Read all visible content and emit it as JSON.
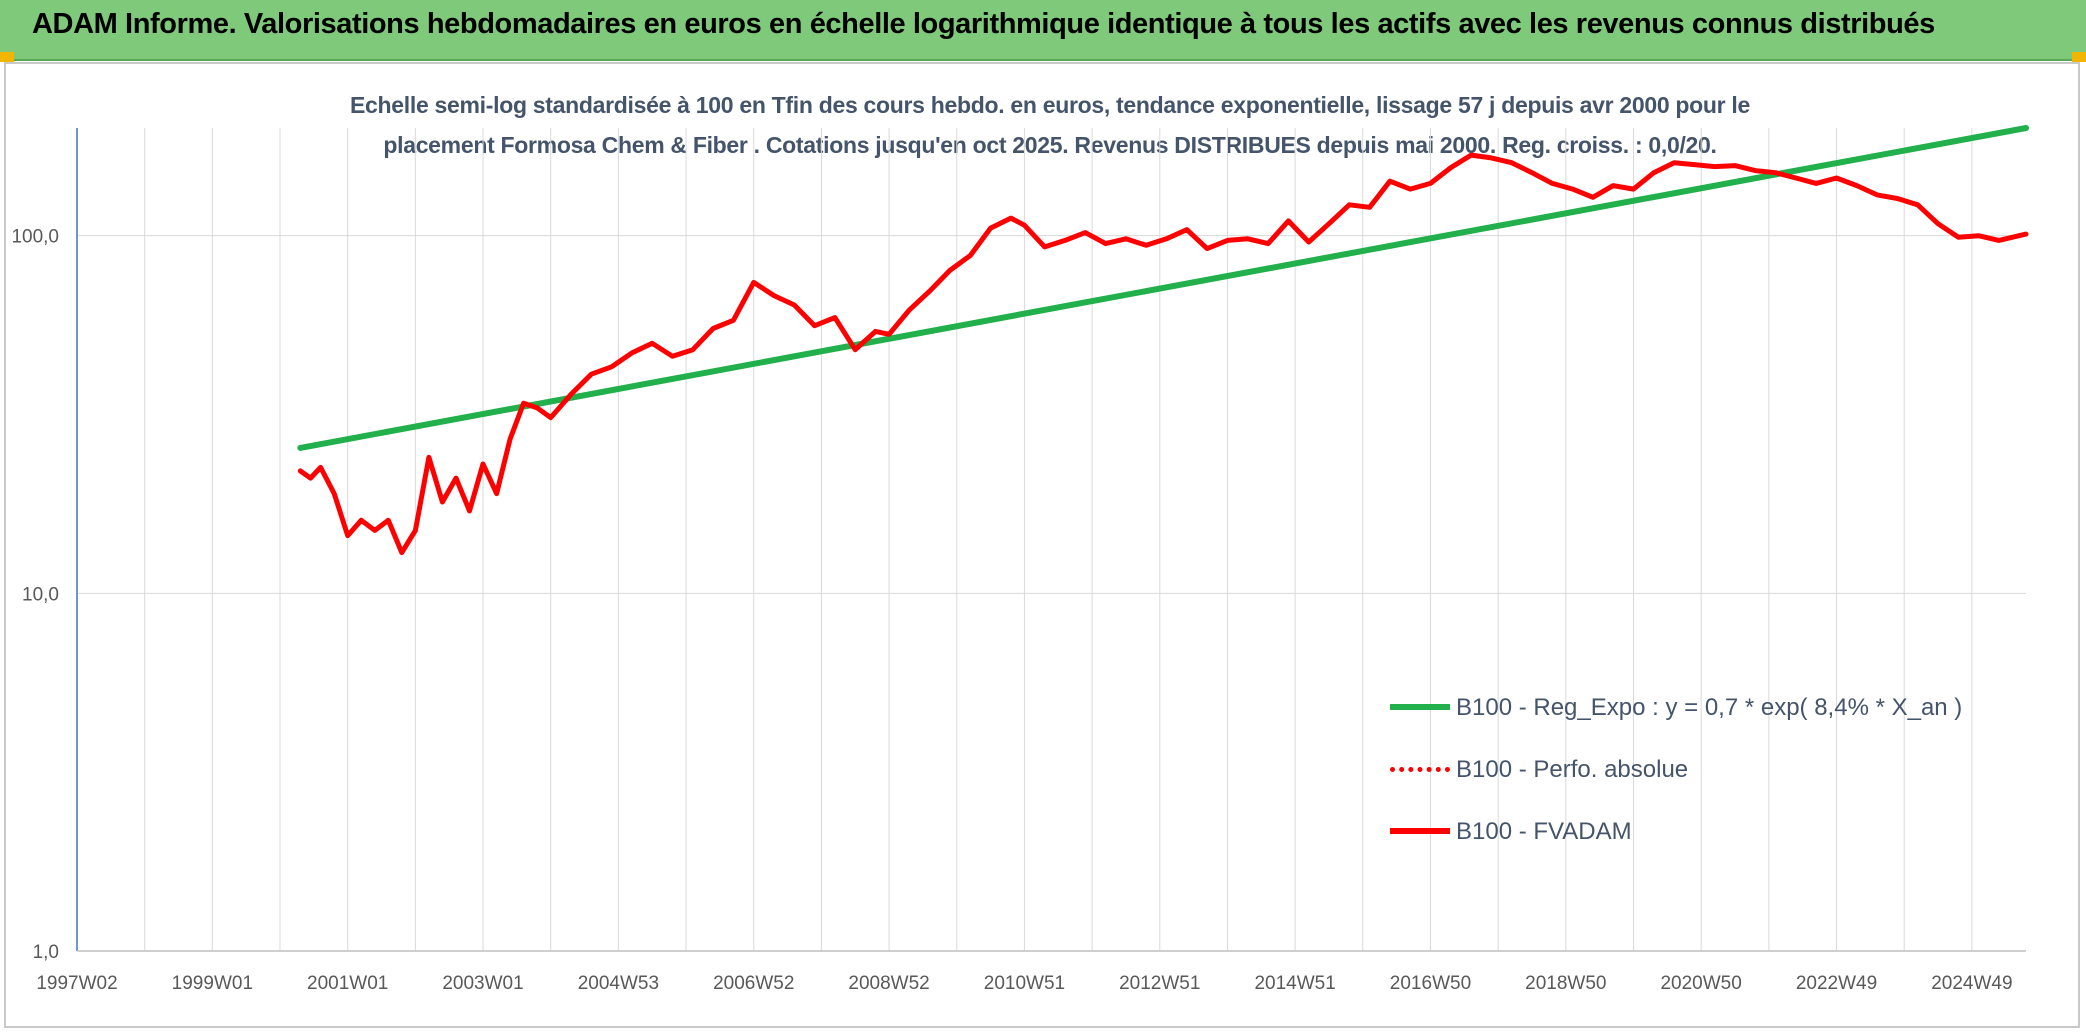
{
  "banner": {
    "title": "ADAM Informe. Valorisations hebdomadaires en euros en échelle logarithmique identique à tous les actifs avec les revenus connus distribués"
  },
  "chart_data": {
    "type": "line",
    "title_lines": [
      "Echelle semi-log standardisée à 100 en Tfin des cours hebdo. en euros, tendance exponentielle, lissage 57 j depuis avr 2000 pour le",
      "placement Formosa Chem & Fiber . Cotations jusqu'en oct 2025. Revenus DISTRIBUES depuis mai 2000. Reg. croiss. : 0,0/20."
    ],
    "y_scale": "log",
    "ylim": [
      1,
      200
    ],
    "xlim": [
      1997.0,
      2025.8
    ],
    "y_ticks": [
      {
        "value": 1,
        "label": "1,0"
      },
      {
        "value": 10,
        "label": "10,0"
      },
      {
        "value": 100,
        "label": "100,0"
      }
    ],
    "x_ticks": [
      {
        "value": 1997.0,
        "label": "1997W02"
      },
      {
        "value": 1999.0,
        "label": "1999W01"
      },
      {
        "value": 2001.0,
        "label": "2001W01"
      },
      {
        "value": 2003.0,
        "label": "2003W01"
      },
      {
        "value": 2005.0,
        "label": "2004W53"
      },
      {
        "value": 2007.0,
        "label": "2006W52"
      },
      {
        "value": 2009.0,
        "label": "2008W52"
      },
      {
        "value": 2011.0,
        "label": "2010W51"
      },
      {
        "value": 2013.0,
        "label": "2012W51"
      },
      {
        "value": 2015.0,
        "label": "2014W51"
      },
      {
        "value": 2017.0,
        "label": "2016W50"
      },
      {
        "value": 2019.0,
        "label": "2018W50"
      },
      {
        "value": 2021.0,
        "label": "2020W50"
      },
      {
        "value": 2023.0,
        "label": "2022W49"
      },
      {
        "value": 2025.0,
        "label": "2024W49"
      }
    ],
    "grid": true,
    "legend_position": "bottom-right",
    "series": [
      {
        "name": "B100 - Reg_Expo : y = 0,7 * exp( 8,4% *  X_an )",
        "color": "#21b04b",
        "style": "solid",
        "x": [
          2000.3,
          2025.8
        ],
        "y": [
          25.5,
          200
        ]
      },
      {
        "name": "B100 - Perfo. absolue",
        "color": "#ff0000",
        "style": "dotted",
        "x": [],
        "y": []
      },
      {
        "name": "B100 - FVADAM",
        "color": "#ff0000",
        "style": "solid",
        "x": [
          2000.3,
          2000.45,
          2000.6,
          2000.8,
          2001.0,
          2001.2,
          2001.4,
          2001.6,
          2001.8,
          2002.0,
          2002.2,
          2002.4,
          2002.6,
          2002.8,
          2003.0,
          2003.2,
          2003.4,
          2003.6,
          2003.8,
          2004.0,
          2004.3,
          2004.6,
          2004.9,
          2005.2,
          2005.5,
          2005.8,
          2006.1,
          2006.4,
          2006.7,
          2007.0,
          2007.3,
          2007.6,
          2007.9,
          2008.2,
          2008.5,
          2008.8,
          2009.0,
          2009.3,
          2009.6,
          2009.9,
          2010.2,
          2010.5,
          2010.8,
          2011.0,
          2011.3,
          2011.6,
          2011.9,
          2012.2,
          2012.5,
          2012.8,
          2013.1,
          2013.4,
          2013.7,
          2014.0,
          2014.3,
          2014.6,
          2014.9,
          2015.2,
          2015.5,
          2015.8,
          2016.1,
          2016.4,
          2016.7,
          2017.0,
          2017.3,
          2017.6,
          2017.9,
          2018.2,
          2018.5,
          2018.8,
          2019.1,
          2019.4,
          2019.7,
          2020.0,
          2020.3,
          2020.6,
          2020.9,
          2021.2,
          2021.5,
          2021.8,
          2022.1,
          2022.4,
          2022.7,
          2023.0,
          2023.3,
          2023.6,
          2023.9,
          2024.2,
          2024.5,
          2024.8,
          2025.1,
          2025.4,
          2025.8
        ],
        "y": [
          22,
          21,
          22.5,
          19,
          14.5,
          16,
          15,
          16,
          13,
          15,
          24,
          18,
          21,
          17,
          23,
          19,
          27,
          34,
          33,
          31,
          36,
          41,
          43,
          47,
          50,
          46,
          48,
          55,
          58,
          74,
          68,
          64,
          56,
          59,
          48,
          54,
          53,
          62,
          70,
          80,
          88,
          105,
          112,
          107,
          93,
          97,
          102,
          95,
          98,
          94,
          98,
          104,
          92,
          97,
          98,
          95,
          110,
          96,
          108,
          122,
          120,
          142,
          135,
          140,
          155,
          168,
          165,
          160,
          150,
          140,
          135,
          128,
          138,
          135,
          150,
          160,
          158,
          156,
          157,
          152,
          150,
          145,
          140,
          145,
          138,
          130,
          127,
          122,
          108,
          99,
          100,
          97,
          101
        ]
      }
    ]
  }
}
